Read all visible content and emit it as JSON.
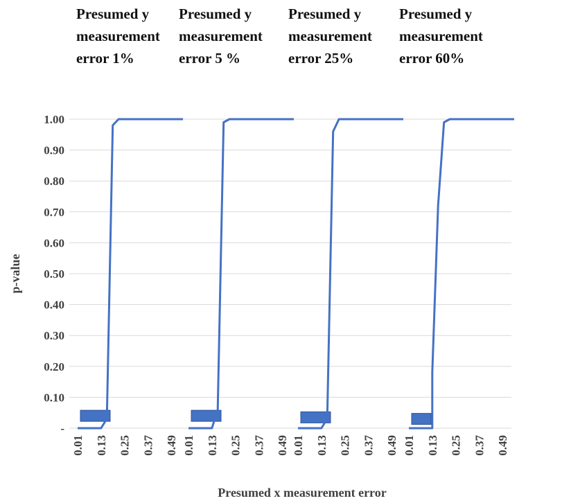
{
  "chart_data": {
    "type": "line",
    "ylabel": "p-value",
    "xlabel": "Presumed x measurement error",
    "ylim": [
      0,
      1
    ],
    "y_ticks": [
      "-",
      "0.10",
      "0.20",
      "0.30",
      "0.40",
      "0.50",
      "0.60",
      "0.70",
      "0.80",
      "0.90",
      "1.00"
    ],
    "x_tick_labels": [
      "0.01",
      "0.13",
      "0.25",
      "0.37",
      "0.49"
    ],
    "grid": true,
    "colors": {
      "series": "#4472C4",
      "marker": "#4472C4",
      "grid": "#d9d9d9",
      "text": "#404040"
    },
    "panels": [
      {
        "title_lines": [
          "Presumed y",
          "measurement",
          "error 1%"
        ],
        "x": [
          0.01,
          0.07,
          0.13,
          0.16,
          0.19,
          0.22,
          0.25,
          0.31,
          0.37,
          0.43,
          0.49,
          0.55
        ],
        "y": [
          0,
          0,
          0,
          0.03,
          0.98,
          1,
          1,
          1,
          1,
          1,
          1,
          1
        ],
        "marker_value": 0.04
      },
      {
        "title_lines": [
          "Presumed y",
          "measurement",
          "error 5 %"
        ],
        "x": [
          0.01,
          0.07,
          0.13,
          0.16,
          0.19,
          0.22,
          0.25,
          0.31,
          0.37,
          0.43,
          0.49,
          0.55
        ],
        "y": [
          0,
          0,
          0,
          0.06,
          0.99,
          1,
          1,
          1,
          1,
          1,
          1,
          1
        ],
        "marker_value": 0.04
      },
      {
        "title_lines": [
          "Presumed y",
          "measurement",
          "error 25%"
        ],
        "x": [
          0.01,
          0.07,
          0.13,
          0.16,
          0.19,
          0.22,
          0.25,
          0.31,
          0.37,
          0.43,
          0.49,
          0.55
        ],
        "y": [
          0,
          0,
          0,
          0.03,
          0.96,
          1,
          1,
          1,
          1,
          1,
          1,
          1
        ],
        "marker_value": 0.035
      },
      {
        "title_lines": [
          "Presumed y",
          "measurement",
          "error 60%"
        ],
        "x": [
          0.01,
          0.07,
          0.13,
          0.13,
          0.16,
          0.19,
          0.22,
          0.25,
          0.31,
          0.37,
          0.43,
          0.49,
          0.55
        ],
        "y": [
          0,
          0,
          0,
          0.18,
          0.72,
          0.99,
          1,
          1,
          1,
          1,
          1,
          1,
          1
        ],
        "marker_value": 0.03
      }
    ]
  }
}
